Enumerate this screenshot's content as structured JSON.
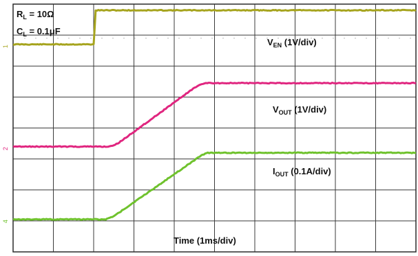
{
  "chart_data": {
    "type": "line",
    "grid": true,
    "grid_divisions": {
      "x": 10,
      "y": 8
    },
    "xlabel": "Time (1ms/div)",
    "x_unit": "ms",
    "xlim": [
      0,
      10
    ],
    "ylim": [
      0,
      8
    ],
    "annotations": {
      "rl": {
        "sym": "R",
        "sub": "L",
        "val": " = 10",
        "unit": "Ω"
      },
      "cl": {
        "sym": "C",
        "sub": "L",
        "val": " = 0.1",
        "unit": "μF"
      }
    },
    "series": [
      {
        "name": "VEN",
        "label": {
          "pre": "V",
          "sub": "EN",
          "post": " (1V/div)"
        },
        "color": "#a6a41e",
        "marker": "1",
        "points": [
          [
            0,
            6.7
          ],
          [
            2.0,
            6.7
          ],
          [
            2.05,
            7.8
          ],
          [
            10,
            7.8
          ]
        ]
      },
      {
        "name": "VOUT",
        "label": {
          "pre": "V",
          "sub": "OUT",
          "post": " (1V/div)"
        },
        "color": "#e0257f",
        "marker": "2",
        "points": [
          [
            0,
            3.4
          ],
          [
            2.4,
            3.4
          ],
          [
            2.6,
            3.5
          ],
          [
            4.5,
            5.3
          ],
          [
            4.75,
            5.45
          ],
          [
            10,
            5.45
          ]
        ]
      },
      {
        "name": "IOUT",
        "label": {
          "pre": "I",
          "sub": "OUT",
          "post": " (0.1A/div)"
        },
        "color": "#6fc22d",
        "marker": "4",
        "points": [
          [
            0,
            1.05
          ],
          [
            2.3,
            1.05
          ],
          [
            2.5,
            1.15
          ],
          [
            4.6,
            3.05
          ],
          [
            4.8,
            3.2
          ],
          [
            10,
            3.2
          ]
        ]
      }
    ]
  }
}
